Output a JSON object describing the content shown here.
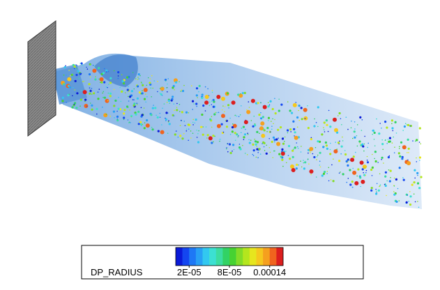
{
  "legend": {
    "title": "DP_RADIUS",
    "range": [
      0,
      0.00016
    ],
    "colors": [
      "#0a1ad8",
      "#1446f0",
      "#1e78f5",
      "#28a0f5",
      "#32c8f0",
      "#3ce0d2",
      "#3cdca0",
      "#32d264",
      "#46d232",
      "#82dc28",
      "#b4e61e",
      "#e6e61e",
      "#f5c81e",
      "#f5a01e",
      "#f0641e",
      "#dc1e1e"
    ],
    "ticks": [
      {
        "value": 2e-05,
        "label": "2E-05"
      },
      {
        "value": 8e-05,
        "label": "8E-05"
      },
      {
        "value": 0.00014,
        "label": "0.00014"
      }
    ]
  }
}
